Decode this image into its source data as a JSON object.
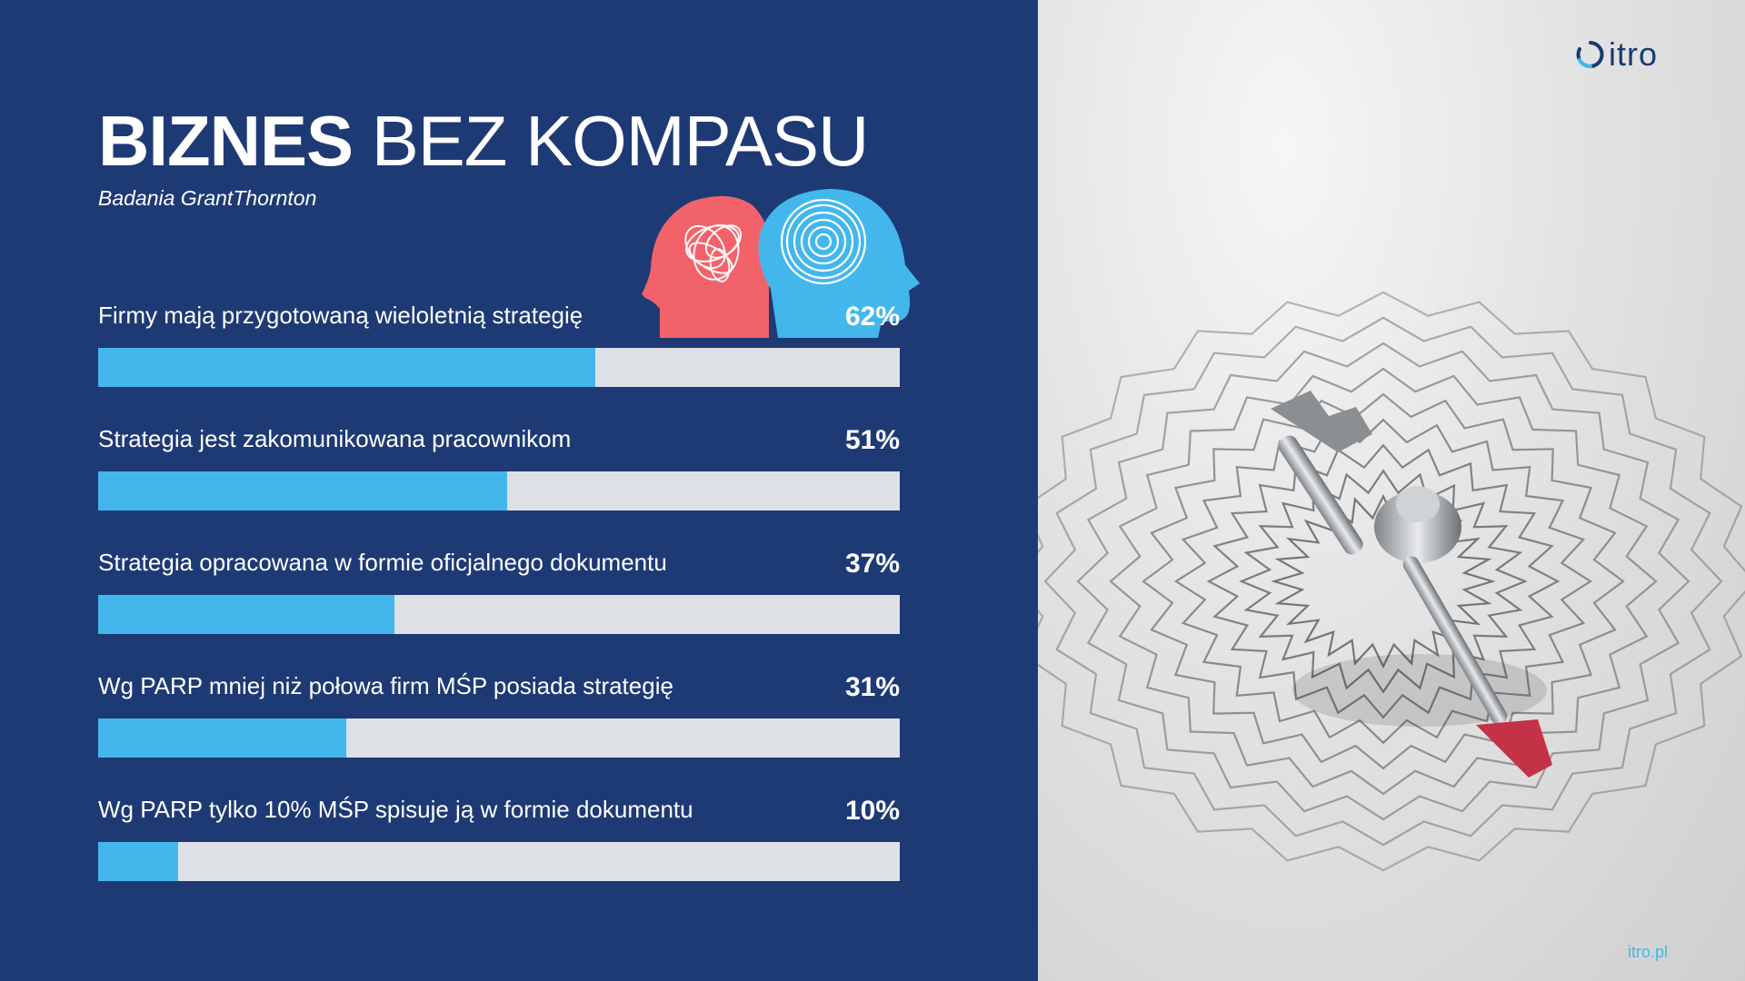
{
  "header": {
    "title_bold": "BIZNES",
    "title_light": "BEZ KOMPASU",
    "subtitle": "Badania GrantThornton"
  },
  "brand": {
    "logo_text": "itro",
    "site_url": "itro.pl"
  },
  "colors": {
    "background": "#1e3a75",
    "bar_fill": "#43b7ec",
    "bar_track": "#dde0e5",
    "head_left": "#f2626a",
    "head_right": "#43b7ec"
  },
  "icons": [
    "tangled-head-icon",
    "spiral-head-icon",
    "compass-needle-photo",
    "itro-logo-icon"
  ],
  "chart_data": {
    "type": "bar",
    "orientation": "horizontal",
    "categories": [
      "Firmy mają przygotowaną wieloletnią strategię",
      "Strategia jest zakomunikowana pracownikom",
      "Strategia opracowana w formie oficjalnego dokumentu",
      "Wg PARP mniej niż połowa firm MŚP posiada strategię",
      "Wg PARP tylko 10% MŚP spisuje ją w formie dokumentu"
    ],
    "values": [
      62,
      51,
      37,
      31,
      10
    ],
    "value_labels": [
      "62%",
      "51%",
      "37%",
      "31%",
      "10%"
    ],
    "xlim": [
      0,
      100
    ],
    "grid": false
  }
}
